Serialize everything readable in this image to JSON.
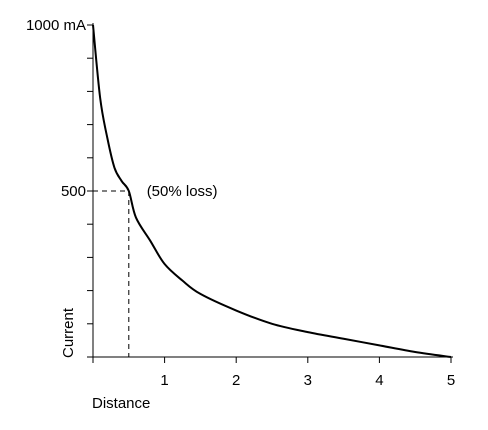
{
  "chart_data": {
    "type": "line",
    "title": "",
    "xlabel": "Distance",
    "ylabel": "Current",
    "xlim": [
      0,
      5
    ],
    "ylim": [
      0,
      1000
    ],
    "x_ticks": [
      1,
      2,
      3,
      4,
      5
    ],
    "x_tick_labels": [
      "1",
      "2",
      "3",
      "4",
      "5"
    ],
    "y_minor_ticks": [
      0,
      100,
      200,
      300,
      400,
      500,
      600,
      700,
      800,
      900,
      1000
    ],
    "y_tick_labels": [
      {
        "value": 1000,
        "label": "1000 mA"
      },
      {
        "value": 500,
        "label": "500"
      }
    ],
    "series": [
      {
        "x": [
          0,
          0.1,
          0.2,
          0.3,
          0.4,
          0.5,
          0.6,
          0.8,
          1.0,
          1.25,
          1.5,
          2.0,
          2.5,
          3.0,
          3.5,
          4.0,
          4.5,
          5.0
        ],
        "y": [
          1000,
          780,
          660,
          570,
          530,
          500,
          420,
          350,
          280,
          230,
          190,
          140,
          100,
          75,
          55,
          35,
          15,
          0
        ]
      }
    ],
    "reference": {
      "x": 0.5,
      "y": 500
    },
    "annotations": [
      {
        "text": "(50% loss)",
        "x": 0.75,
        "y": 500
      }
    ],
    "grid": false,
    "line_color": "#000000"
  }
}
